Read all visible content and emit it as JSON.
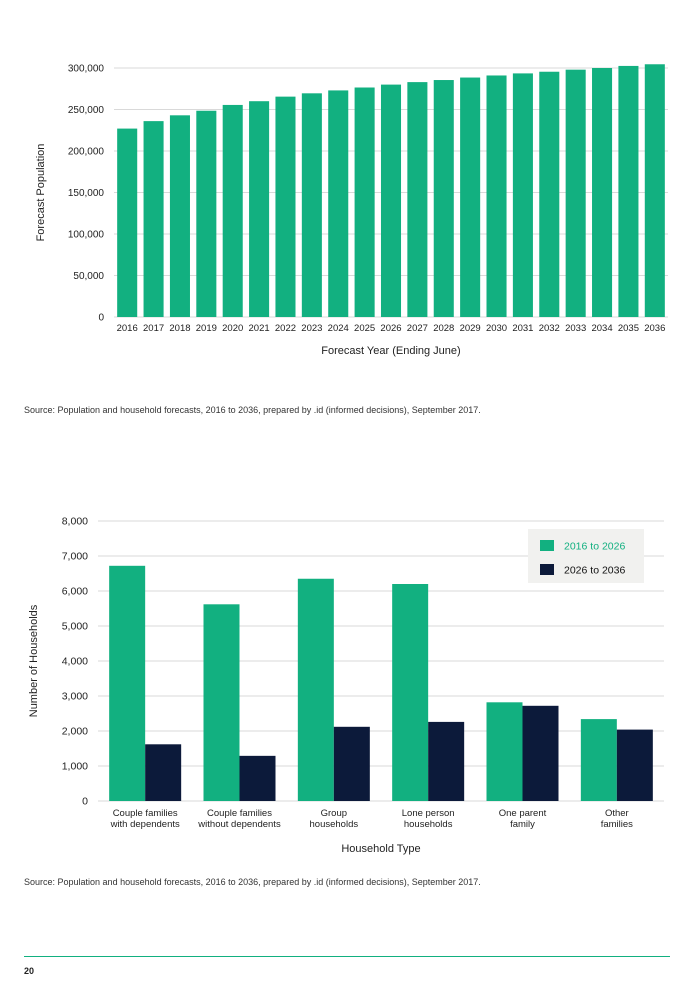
{
  "colors": {
    "green": "#12b080",
    "navy": "#0c1a3a",
    "grid": "#d9d9d9",
    "legend_bg": "#f1f1ef"
  },
  "chart_data": [
    {
      "type": "bar",
      "xlabel": "Forecast Year (Ending June)",
      "ylabel": "Forecast Population",
      "ylim": [
        0,
        300000
      ],
      "yticks": [
        "0",
        "50,000",
        "100,000",
        "150,000",
        "200,000",
        "250,000",
        "300,000"
      ],
      "grid": true,
      "categories": [
        "2016",
        "2017",
        "2018",
        "2019",
        "2020",
        "2021",
        "2022",
        "2023",
        "2024",
        "2025",
        "2026",
        "2027",
        "2028",
        "2029",
        "2030",
        "2031",
        "2032",
        "2033",
        "2034",
        "2035",
        "2036"
      ],
      "values": [
        227000,
        236000,
        243000,
        248500,
        255500,
        260000,
        265500,
        269500,
        273000,
        276500,
        280000,
        283000,
        285500,
        288500,
        291000,
        293500,
        295500,
        298000,
        300000,
        302500,
        304500
      ]
    },
    {
      "type": "bar",
      "xlabel": "Household Type",
      "ylabel": "Number of Households",
      "ylim": [
        0,
        8000
      ],
      "yticks": [
        "0",
        "1,000",
        "2,000",
        "3,000",
        "4,000",
        "5,000",
        "6,000",
        "7,000",
        "8,000"
      ],
      "grid": true,
      "legend_position": "top-right",
      "categories": [
        [
          "Couple families",
          "with dependents"
        ],
        [
          "Couple families",
          "without dependents"
        ],
        [
          "Group",
          "households"
        ],
        [
          "Lone person",
          "households"
        ],
        [
          "One parent",
          "family"
        ],
        [
          "Other",
          "families"
        ]
      ],
      "series": [
        {
          "name": "2016 to 2026",
          "color": "#12b080",
          "values": [
            6720,
            5620,
            6350,
            6200,
            2820,
            2340
          ]
        },
        {
          "name": "2026 to 2036",
          "color": "#0c1a3a",
          "values": [
            1620,
            1290,
            2120,
            2260,
            2720,
            2040
          ]
        }
      ]
    }
  ],
  "sources": [
    "Source: Population and household forecasts, 2016 to 2036, prepared by .id (informed decisions), September 2017.",
    "Source: Population and household forecasts, 2016 to 2036, prepared by .id (informed decisions), September 2017."
  ],
  "page_number": "20"
}
